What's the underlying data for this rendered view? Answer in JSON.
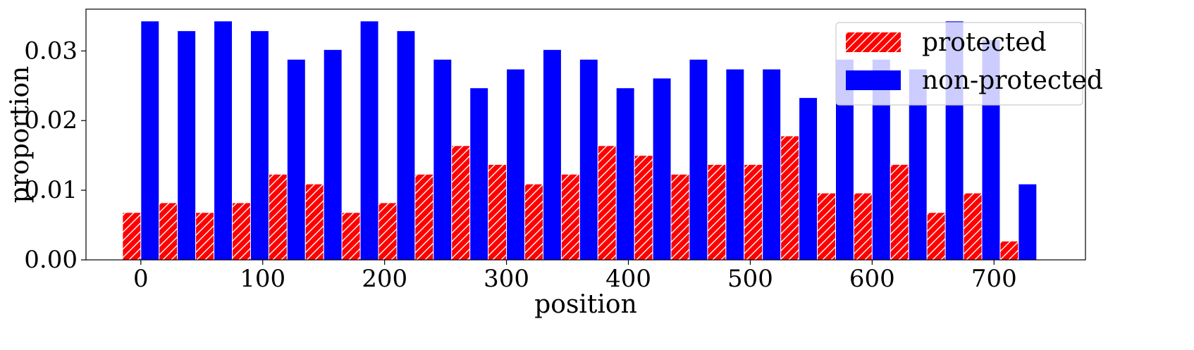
{
  "chart_data": {
    "type": "bar",
    "xlabel": "position",
    "ylabel": "proportion",
    "xlim": [
      -45,
      775
    ],
    "ylim": [
      0,
      0.036
    ],
    "x_ticks": [
      0,
      100,
      200,
      300,
      400,
      500,
      600,
      700
    ],
    "y_ticks": [
      0,
      0.01,
      0.02,
      0.03
    ],
    "y_tick_labels": [
      "0.00",
      "0.01",
      "0.02",
      "0.03"
    ],
    "grid": false,
    "legend_position": "top-right",
    "bin_width": 30,
    "bin_starts": [
      0,
      30,
      60,
      90,
      120,
      150,
      180,
      210,
      240,
      270,
      300,
      330,
      360,
      390,
      420,
      450,
      480,
      510,
      540,
      570,
      600,
      630,
      660,
      690,
      720
    ],
    "series": [
      {
        "name": "protected",
        "color": "#ff0000",
        "pattern": "hatch",
        "values": [
          0.0068,
          0.0082,
          0.0068,
          0.0082,
          0.0123,
          0.0109,
          0.0068,
          0.0082,
          0.0123,
          0.0164,
          0.0137,
          0.0109,
          0.0123,
          0.0164,
          0.015,
          0.0123,
          0.0137,
          0.0137,
          0.0178,
          0.0096,
          0.0096,
          0.0137,
          0.0068,
          0.0096,
          0.0027
        ]
      },
      {
        "name": "non-protected",
        "color": "#0000ff",
        "pattern": "solid",
        "values": [
          0.0343,
          0.0329,
          0.0343,
          0.0329,
          0.0288,
          0.0302,
          0.0343,
          0.0329,
          0.0288,
          0.0247,
          0.0274,
          0.0302,
          0.0288,
          0.0247,
          0.0261,
          0.0288,
          0.0274,
          0.0274,
          0.0233,
          0.0288,
          0.0288,
          0.0274,
          0.0343,
          0.0316,
          0.0109
        ]
      }
    ]
  }
}
